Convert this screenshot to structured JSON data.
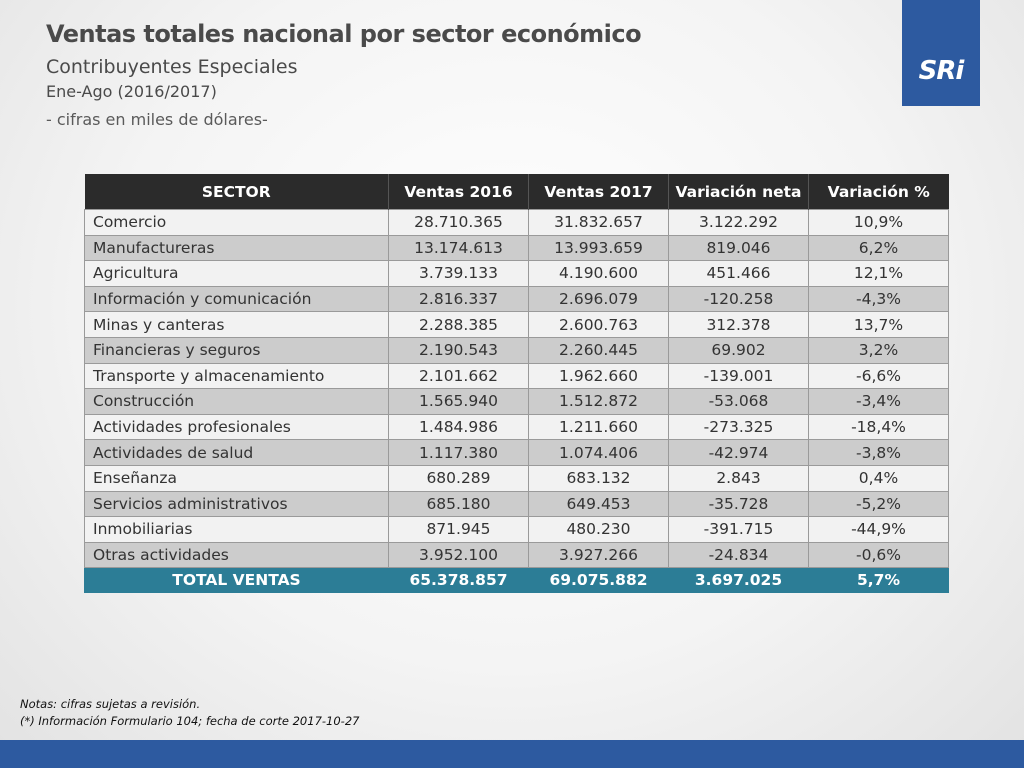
{
  "header": {
    "title": "Ventas totales nacional por sector económico",
    "subtitle": "Contribuyentes Especiales",
    "period": "Ene-Ago (2016/2017)",
    "units": "- cifras en miles de dólares-"
  },
  "logo": {
    "text": "SRi"
  },
  "table": {
    "columns": [
      "SECTOR",
      "Ventas 2016",
      "Ventas 2017",
      "Variación neta",
      "Variación %"
    ],
    "rows": [
      [
        "Comercio",
        "28.710.365",
        "31.832.657",
        "3.122.292",
        "10,9%"
      ],
      [
        "Manufactureras",
        "13.174.613",
        "13.993.659",
        "819.046",
        "6,2%"
      ],
      [
        "Agricultura",
        "3.739.133",
        "4.190.600",
        "451.466",
        "12,1%"
      ],
      [
        "Información y comunicación",
        "2.816.337",
        "2.696.079",
        "-120.258",
        "-4,3%"
      ],
      [
        "Minas y canteras",
        "2.288.385",
        "2.600.763",
        "312.378",
        "13,7%"
      ],
      [
        "Financieras y seguros",
        "2.190.543",
        "2.260.445",
        "69.902",
        "3,2%"
      ],
      [
        "Transporte y almacenamiento",
        "2.101.662",
        "1.962.660",
        "-139.001",
        "-6,6%"
      ],
      [
        "Construcción",
        "1.565.940",
        "1.512.872",
        "-53.068",
        "-3,4%"
      ],
      [
        "Actividades profesionales",
        "1.484.986",
        "1.211.660",
        "-273.325",
        "-18,4%"
      ],
      [
        "Actividades de salud",
        "1.117.380",
        "1.074.406",
        "-42.974",
        "-3,8%"
      ],
      [
        "Enseñanza",
        "680.289",
        "683.132",
        "2.843",
        "0,4%"
      ],
      [
        "Servicios administrativos",
        "685.180",
        "649.453",
        "-35.728",
        "-5,2%"
      ],
      [
        "Inmobiliarias",
        "871.945",
        "480.230",
        "-391.715",
        "-44,9%"
      ],
      [
        "Otras actividades",
        "3.952.100",
        "3.927.266",
        "-24.834",
        "-0,6%"
      ]
    ],
    "total": [
      "TOTAL VENTAS",
      "65.378.857",
      "69.075.882",
      "3.697.025",
      "5,7%"
    ]
  },
  "notes": {
    "line1": "Notas: cifras sujetas a revisión.",
    "line2": "(*) Información Formulario 104; fecha de corte 2017-10-27"
  },
  "colors": {
    "brand_blue": "#2d5aa0",
    "header_dark": "#2b2b2b",
    "total_teal": "#2c7d96",
    "row_light": "#f2f2f2",
    "row_dark": "#cccccc"
  }
}
